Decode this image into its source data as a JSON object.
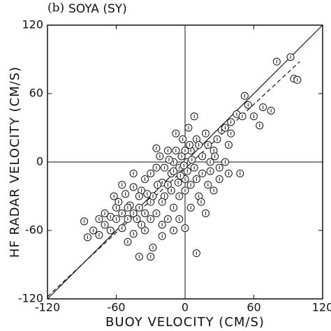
{
  "chart_data": {
    "type": "scatter",
    "panel": "(b)",
    "title": "SOYA (SY)",
    "x_label": "BUOY VELOCITY (CM/S)",
    "y_label": "HF RADAR VELOCITY (CM/S)",
    "xlim": [
      -120,
      120
    ],
    "ylim": [
      -120,
      120
    ],
    "xticks": [
      -120,
      -60,
      0,
      60,
      120
    ],
    "yticks": [
      -120,
      -60,
      0,
      60,
      120
    ],
    "color": "#111111",
    "lines": [
      {
        "style": "solid",
        "x": [
          -120,
          120
        ],
        "y": [
          -120,
          120
        ]
      },
      {
        "style": "dashed",
        "x": [
          -120,
          100
        ],
        "y": [
          -118,
          88
        ]
      }
    ],
    "x": [
      -88,
      -85,
      -80,
      -75,
      -70,
      -65,
      -60,
      -55,
      -50,
      -45,
      -40,
      -30,
      -28,
      -35,
      -42,
      -48,
      -52,
      -58,
      -62,
      -55,
      -45,
      -38,
      -35,
      -30,
      -25,
      -22,
      -20,
      -18,
      -15,
      -12,
      -10,
      -8,
      -5,
      -3,
      0,
      2,
      5,
      8,
      10,
      12,
      15,
      18,
      20,
      22,
      25,
      28,
      30,
      32,
      35,
      38,
      40,
      45,
      48,
      50,
      52,
      55,
      60,
      65,
      68,
      75,
      80,
      92,
      95,
      98,
      10,
      5,
      -15,
      -20,
      -25,
      -30,
      -35,
      -40,
      -45,
      -50,
      -60,
      -65,
      -70,
      -75,
      -10,
      -5,
      0,
      5,
      10,
      15,
      20,
      25,
      3,
      -2,
      -8,
      -15,
      -25,
      -18,
      -12,
      -28,
      -33,
      8,
      12,
      18,
      30,
      40,
      35,
      0,
      -4,
      -6,
      2,
      6,
      -10,
      -14,
      -1,
      4,
      -20,
      -24,
      -40,
      -45,
      -50,
      -55,
      -38,
      -20,
      -10,
      -30,
      -5,
      0,
      14,
      22,
      26,
      38
    ],
    "values": [
      -52,
      -66,
      -60,
      -64,
      -55,
      -48,
      -40,
      -58,
      -70,
      -63,
      -83,
      -83,
      -75,
      -60,
      -50,
      -38,
      -28,
      -35,
      -30,
      -20,
      -22,
      -25,
      -15,
      -10,
      -5,
      5,
      -18,
      -30,
      -20,
      -10,
      0,
      10,
      -5,
      5,
      -15,
      0,
      10,
      -5,
      20,
      15,
      5,
      25,
      15,
      0,
      10,
      20,
      -5,
      28,
      30,
      15,
      25,
      42,
      -10,
      40,
      58,
      50,
      40,
      32,
      48,
      45,
      88,
      92,
      73,
      72,
      -80,
      -40,
      -50,
      -55,
      -45,
      -35,
      -45,
      -40,
      -45,
      -50,
      -50,
      -60,
      -45,
      -50,
      -40,
      -30,
      -25,
      -20,
      -15,
      -10,
      -20,
      -25,
      30,
      20,
      25,
      10,
      12,
      -5,
      -25,
      -30,
      -28,
      40,
      -30,
      -45,
      -15,
      35,
      0,
      10,
      -12,
      -18,
      -8,
      2,
      -8,
      2,
      -3,
      15,
      -35,
      -20,
      -30,
      -10,
      -40,
      -45,
      -55,
      -65,
      -60,
      -50,
      -50,
      -58,
      -35,
      -8,
      5,
      -10
    ]
  }
}
